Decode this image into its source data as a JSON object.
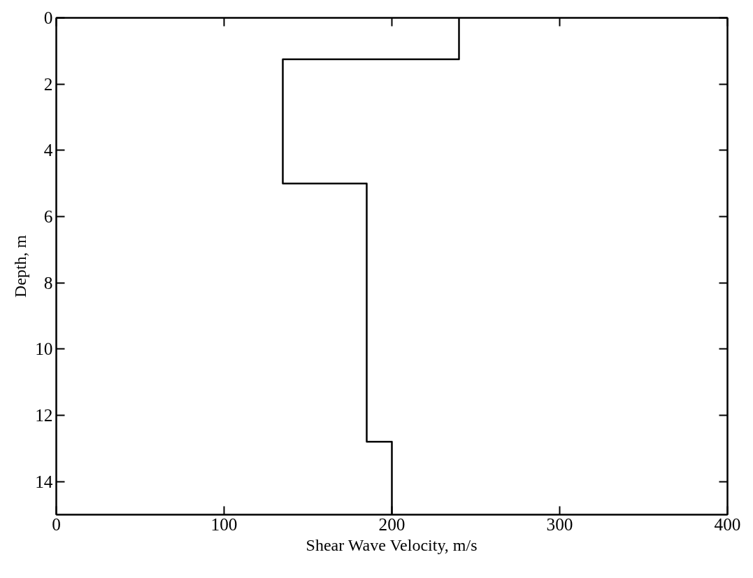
{
  "chart_data": {
    "type": "line",
    "xlabel": "Shear Wave Velocity, m/s",
    "ylabel": "Depth, m",
    "x": [
      240,
      240,
      135,
      135,
      185,
      185,
      200,
      200
    ],
    "values": [
      0,
      1.25,
      1.25,
      5,
      5,
      12.8,
      12.8,
      15
    ],
    "color": "#000000",
    "xlim": [
      0,
      400
    ],
    "xticks": [
      0,
      100,
      200,
      300,
      400
    ],
    "ylim": [
      15,
      0
    ],
    "yticks": [
      0,
      2,
      4,
      6,
      8,
      10,
      12,
      14
    ],
    "grid": false,
    "marker": "none",
    "line_style": "solid"
  }
}
